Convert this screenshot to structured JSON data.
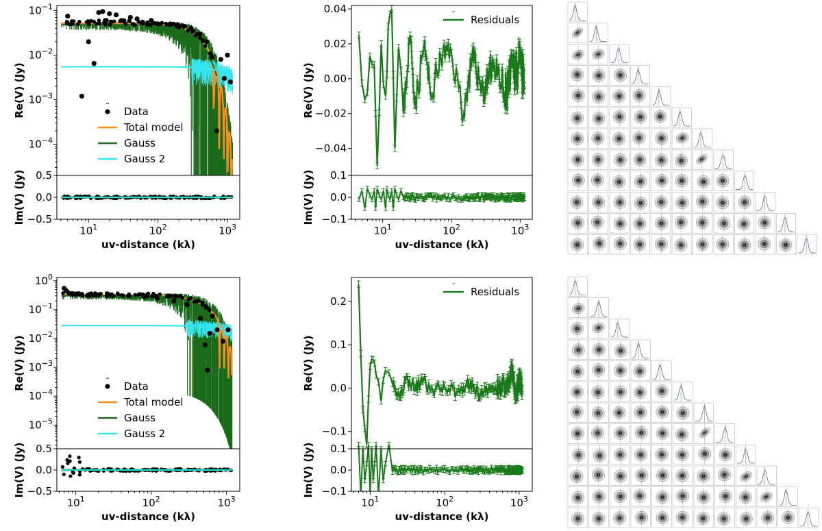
{
  "chart_data": [
    {
      "type": "line",
      "panel": "top-left",
      "re_panel": {
        "ylabel": "Re(V) (Jy)",
        "yscale": "log",
        "ylim": [
          2e-05,
          0.13
        ],
        "y_tick_labels": [
          "10^-1",
          "10^-2",
          "10^-3",
          "10^-4"
        ],
        "legend_placement": "bottom-left",
        "legend": [
          "Data",
          "Total model",
          "Gauss",
          "Gauss 2"
        ]
      },
      "im_panel": {
        "ylabel": "Im(V) (Jy)",
        "ylim": [
          -0.5,
          0.5
        ],
        "y_tick_labels": [
          "0.5",
          "0.0",
          "−0.5"
        ]
      },
      "xlabel": "uv-distance (kλ)",
      "xscale": "log",
      "xlim": [
        3.5,
        1500
      ],
      "x_tick_labels": [
        "10^1",
        "10^2",
        "10^3"
      ],
      "data_points": {
        "x": [
          5,
          8,
          10,
          12,
          14,
          16,
          18,
          20,
          25,
          30,
          40,
          50,
          60,
          80,
          100,
          150,
          200,
          300,
          400,
          500,
          600,
          700,
          800,
          900,
          1000,
          1100
        ],
        "y": [
          0.075,
          0.0012,
          0.02,
          0.0065,
          0.09,
          0.095,
          0.06,
          0.085,
          0.08,
          0.06,
          0.07,
          0.065,
          0.055,
          0.06,
          0.05,
          0.05,
          0.045,
          0.04,
          0.03,
          0.02,
          0.009,
          0.0002,
          0.008,
          0.003,
          0.01,
          0.0025
        ]
      },
      "total_model": {
        "amplitude": 0.052,
        "scale": 450,
        "null_1": 590
      },
      "gauss": {
        "amplitude": 0.048,
        "scale": 430
      },
      "gauss_2": {
        "amplitude": 0.0055,
        "scale": 1600
      }
    },
    {
      "type": "line",
      "panel": "top-middle",
      "re_panel": {
        "ylabel": "Re(V) (Jy)",
        "ylim": [
          -0.0555,
          0.042
        ],
        "y_tick_labels": [
          "0.04",
          "0.02",
          "0.00",
          "−0.02",
          "−0.04"
        ],
        "legend_placement": "top-right",
        "legend": [
          "Residuals"
        ]
      },
      "im_panel": {
        "ylabel": "Im(V) (Jy)",
        "ylim": [
          -0.1,
          0.1
        ],
        "y_tick_labels": [
          "0.1",
          "0.0",
          "−0.1"
        ]
      },
      "xlabel": "uv-distance (kλ)",
      "xscale": "log",
      "xlim": [
        3.5,
        1500
      ],
      "x_tick_labels": [
        "10^1",
        "10^2",
        "10^3"
      ],
      "residuals": {
        "x": [
          4.5,
          5.5,
          6.5,
          7.5,
          8.3,
          9.5,
          11,
          12,
          13.5,
          15,
          17,
          20,
          25,
          30,
          40,
          50,
          70,
          100,
          150,
          200,
          300,
          400,
          600,
          800,
          1000,
          1150
        ],
        "y": [
          0.025,
          -0.012,
          0.013,
          0.008,
          -0.05,
          0.02,
          -0.01,
          0.03,
          0.04,
          -0.04,
          0.018,
          -0.02,
          0.025,
          -0.015,
          0.02,
          -0.01,
          0.012,
          0.015,
          -0.02,
          0.012,
          -0.008,
          0.01,
          -0.012,
          0.006,
          0.008,
          -0.004
        ]
      }
    },
    {
      "type": "line",
      "panel": "bottom-left",
      "re_panel": {
        "ylabel": "Re(V) (Jy)",
        "yscale": "log",
        "ylim": [
          1.5e-06,
          1.3
        ],
        "y_tick_labels": [
          "10^0",
          "10^-1",
          "10^-2",
          "10^-3",
          "10^-4",
          "10^-5"
        ],
        "legend_placement": "bottom-left",
        "legend": [
          "Data",
          "Total model",
          "Gauss",
          "Gauss 2"
        ]
      },
      "im_panel": {
        "ylabel": "Im(V) (Jy)",
        "ylim": [
          -0.5,
          0.5
        ],
        "y_tick_labels": [
          "0.5",
          "0.0",
          "−0.5"
        ]
      },
      "xlabel": "uv-distance (kλ)",
      "xscale": "log",
      "xlim": [
        5.6,
        1500
      ],
      "x_tick_labels": [
        "10^1",
        "10^2",
        "10^3"
      ],
      "data_points": {
        "x": [
          7,
          7.5,
          8,
          9,
          10,
          12,
          15,
          20,
          30,
          50,
          80,
          120,
          200,
          300,
          450,
          520,
          560,
          600,
          650,
          750,
          900,
          1050
        ],
        "y": [
          0.55,
          0.45,
          0.38,
          0.36,
          0.35,
          0.34,
          0.33,
          0.32,
          0.32,
          0.3,
          0.28,
          0.25,
          0.2,
          0.15,
          0.05,
          0.006,
          0.0008,
          0.015,
          0.06,
          0.02,
          0.008,
          0.02
        ]
      },
      "total_model": {
        "amplitude": 0.32,
        "scale": 550,
        "null_1": 770
      },
      "gauss": {
        "amplitude": 0.3,
        "scale": 520
      },
      "gauss_2": {
        "amplitude": 0.028,
        "scale": 1800
      }
    },
    {
      "type": "line",
      "panel": "bottom-middle",
      "re_panel": {
        "ylabel": "Re(V) (Jy)",
        "ylim": [
          -0.14,
          0.255
        ],
        "y_tick_labels": [
          "0.2",
          "0.1",
          "0.0",
          "−0.1"
        ],
        "legend_placement": "top-right",
        "legend": [
          "Residuals"
        ]
      },
      "im_panel": {
        "ylabel": "Im(V) (Jy)",
        "ylim": [
          -0.1,
          0.1
        ],
        "y_tick_labels": [
          "0.1",
          "0.0",
          "−0.1"
        ]
      },
      "xlabel": "uv-distance (kλ)",
      "xscale": "log",
      "xlim": [
        5.6,
        1500
      ],
      "x_tick_labels": [
        "10^1",
        "10^2",
        "10^3"
      ],
      "residuals": {
        "x": [
          7,
          8,
          9,
          10,
          11,
          12,
          14,
          16,
          20,
          25,
          30,
          40,
          50,
          70,
          100,
          150,
          200,
          300,
          500,
          700,
          800,
          900,
          1000,
          1100
        ],
        "y": [
          0.24,
          -0.05,
          -0.13,
          0.05,
          0.065,
          0.03,
          -0.03,
          0.04,
          0.01,
          -0.02,
          0.02,
          0.0,
          0.015,
          -0.01,
          0.005,
          -0.01,
          0.01,
          -0.01,
          0.0,
          0.01,
          0.04,
          -0.02,
          0.02,
          0.0
        ]
      }
    }
  ],
  "corner_plots": [
    {
      "panel": "top-right",
      "n_parameters": 12
    },
    {
      "panel": "bottom-right",
      "n_parameters": 12
    }
  ],
  "colors": {
    "data": "#000000",
    "total_model": "#ff8c1a",
    "gauss": "#1a6b1a",
    "gauss_2": "#33e6f0",
    "residuals": "#1a7a1a",
    "corner_grey": "#555555",
    "corner_blue": "#5b8dc8"
  }
}
